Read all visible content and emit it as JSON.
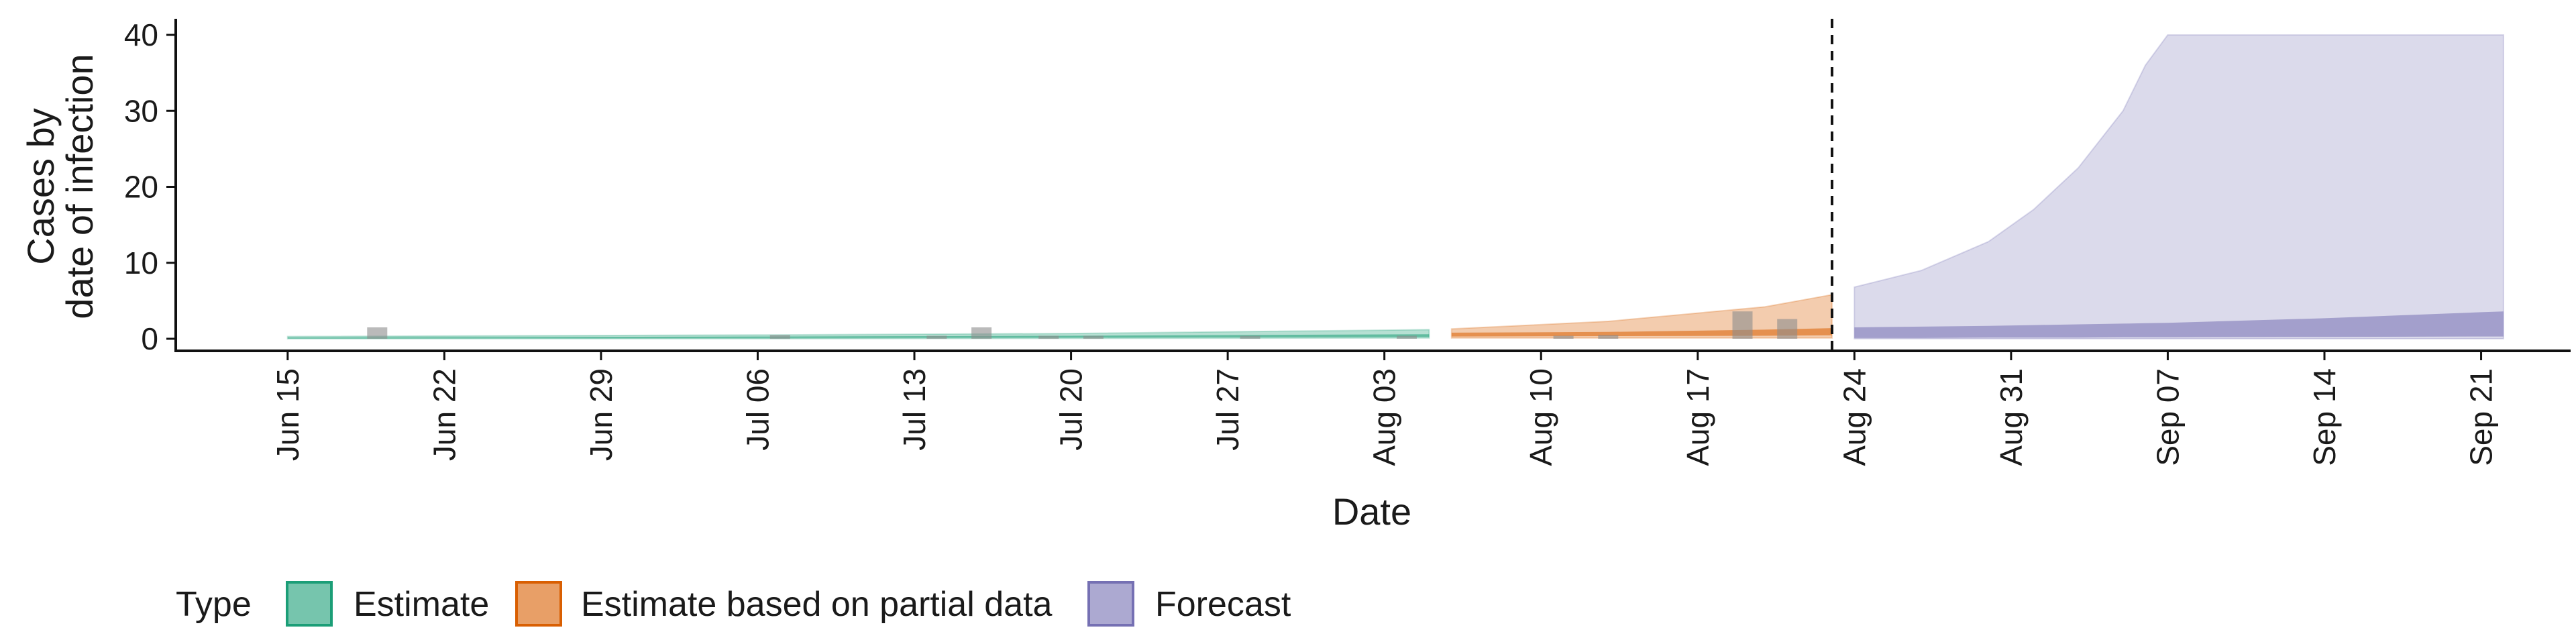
{
  "chart_data": {
    "type": "area",
    "title": "",
    "xlabel": "Date",
    "ylabel": [
      "Cases by",
      "date of infection"
    ],
    "ylim": [
      0,
      40
    ],
    "yticks": [
      0,
      10,
      20,
      30,
      40
    ],
    "xlim": [
      "2020-06-10",
      "2020-09-25"
    ],
    "xtick_labels": [
      {
        "date": "2020-06-15",
        "label": "Jun 15"
      },
      {
        "date": "2020-06-22",
        "label": "Jun 22"
      },
      {
        "date": "2020-06-29",
        "label": "Jun 29"
      },
      {
        "date": "2020-07-06",
        "label": "Jul 06"
      },
      {
        "date": "2020-07-13",
        "label": "Jul 13"
      },
      {
        "date": "2020-07-20",
        "label": "Jul 20"
      },
      {
        "date": "2020-07-27",
        "label": "Jul 27"
      },
      {
        "date": "2020-08-03",
        "label": "Aug 03"
      },
      {
        "date": "2020-08-10",
        "label": "Aug 10"
      },
      {
        "date": "2020-08-17",
        "label": "Aug 17"
      },
      {
        "date": "2020-08-24",
        "label": "Aug 24"
      },
      {
        "date": "2020-08-31",
        "label": "Aug 31"
      },
      {
        "date": "2020-09-07",
        "label": "Sep 07"
      },
      {
        "date": "2020-09-14",
        "label": "Sep 14"
      },
      {
        "date": "2020-09-21",
        "label": "Sep 21"
      }
    ],
    "grid": false,
    "legend": {
      "title": "Type",
      "position": "bottom"
    },
    "reference_line": {
      "date": "2020-08-23",
      "style": "dashed"
    },
    "series": [
      {
        "name": "Estimate",
        "color": "#1b9e77",
        "points": [
          {
            "date": "2020-06-15",
            "lower90": 0.0,
            "upper90": 0.3,
            "lower50": 0.05,
            "upper50": 0.15
          },
          {
            "date": "2020-07-06",
            "lower90": 0.0,
            "upper90": 0.5,
            "lower50": 0.1,
            "upper50": 0.3
          },
          {
            "date": "2020-07-20",
            "lower90": 0.05,
            "upper90": 0.7,
            "lower50": 0.15,
            "upper50": 0.4
          },
          {
            "date": "2020-08-05",
            "lower90": 0.1,
            "upper90": 1.2,
            "lower50": 0.25,
            "upper50": 0.6
          }
        ]
      },
      {
        "name": "Estimate based on partial data",
        "color": "#d95f02",
        "points": [
          {
            "date": "2020-08-06",
            "lower90": 0.1,
            "upper90": 1.3,
            "lower50": 0.3,
            "upper50": 0.8
          },
          {
            "date": "2020-08-13",
            "lower90": 0.1,
            "upper90": 2.3,
            "lower50": 0.35,
            "upper50": 0.9
          },
          {
            "date": "2020-08-20",
            "lower90": 0.1,
            "upper90": 4.2,
            "lower50": 0.4,
            "upper50": 1.2
          },
          {
            "date": "2020-08-23",
            "lower90": 0.1,
            "upper90": 5.8,
            "lower50": 0.45,
            "upper50": 1.4
          }
        ]
      },
      {
        "name": "Forecast",
        "color": "#7570b3",
        "points": [
          {
            "date": "2020-08-24",
            "lower90": 0.0,
            "upper90": 6.8,
            "lower50": 0.1,
            "upper50": 1.5
          },
          {
            "date": "2020-08-27",
            "lower90": 0.0,
            "upper90": 9.0,
            "lower50": 0.1,
            "upper50": 1.6
          },
          {
            "date": "2020-08-30",
            "lower90": 0.0,
            "upper90": 12.8,
            "lower50": 0.15,
            "upper50": 1.7
          },
          {
            "date": "2020-09-01",
            "lower90": 0.0,
            "upper90": 17.0,
            "lower50": 0.15,
            "upper50": 1.8
          },
          {
            "date": "2020-09-03",
            "lower90": 0.0,
            "upper90": 22.5,
            "lower50": 0.15,
            "upper50": 1.9
          },
          {
            "date": "2020-09-05",
            "lower90": 0.0,
            "upper90": 30.0,
            "lower50": 0.2,
            "upper50": 2.0
          },
          {
            "date": "2020-09-06",
            "lower90": 0.0,
            "upper90": 36.0,
            "lower50": 0.2,
            "upper50": 2.05
          },
          {
            "date": "2020-09-07",
            "lower90": 0.0,
            "upper90": 40.0,
            "lower50": 0.2,
            "upper50": 2.1
          },
          {
            "date": "2020-09-14",
            "lower90": 0.0,
            "upper90": 40.0,
            "lower50": 0.25,
            "upper50": 2.7
          },
          {
            "date": "2020-09-21",
            "lower90": 0.0,
            "upper90": 40.0,
            "lower50": 0.3,
            "upper50": 3.5
          },
          {
            "date": "2020-09-22",
            "lower90": 0.0,
            "upper90": 40.0,
            "lower50": 0.3,
            "upper50": 3.6
          }
        ]
      }
    ],
    "observed_cases": [
      {
        "date": "2020-06-19",
        "value": 1.5
      },
      {
        "date": "2020-07-07",
        "value": 0.5
      },
      {
        "date": "2020-07-14",
        "value": 0.4
      },
      {
        "date": "2020-07-16",
        "value": 1.5
      },
      {
        "date": "2020-07-19",
        "value": 0.4
      },
      {
        "date": "2020-07-21",
        "value": 0.4
      },
      {
        "date": "2020-07-28",
        "value": 0.4
      },
      {
        "date": "2020-08-04",
        "value": 0.4
      },
      {
        "date": "2020-08-11",
        "value": 0.4
      },
      {
        "date": "2020-08-13",
        "value": 0.5
      },
      {
        "date": "2020-08-19",
        "value": 3.6
      },
      {
        "date": "2020-08-21",
        "value": 2.6
      }
    ]
  }
}
